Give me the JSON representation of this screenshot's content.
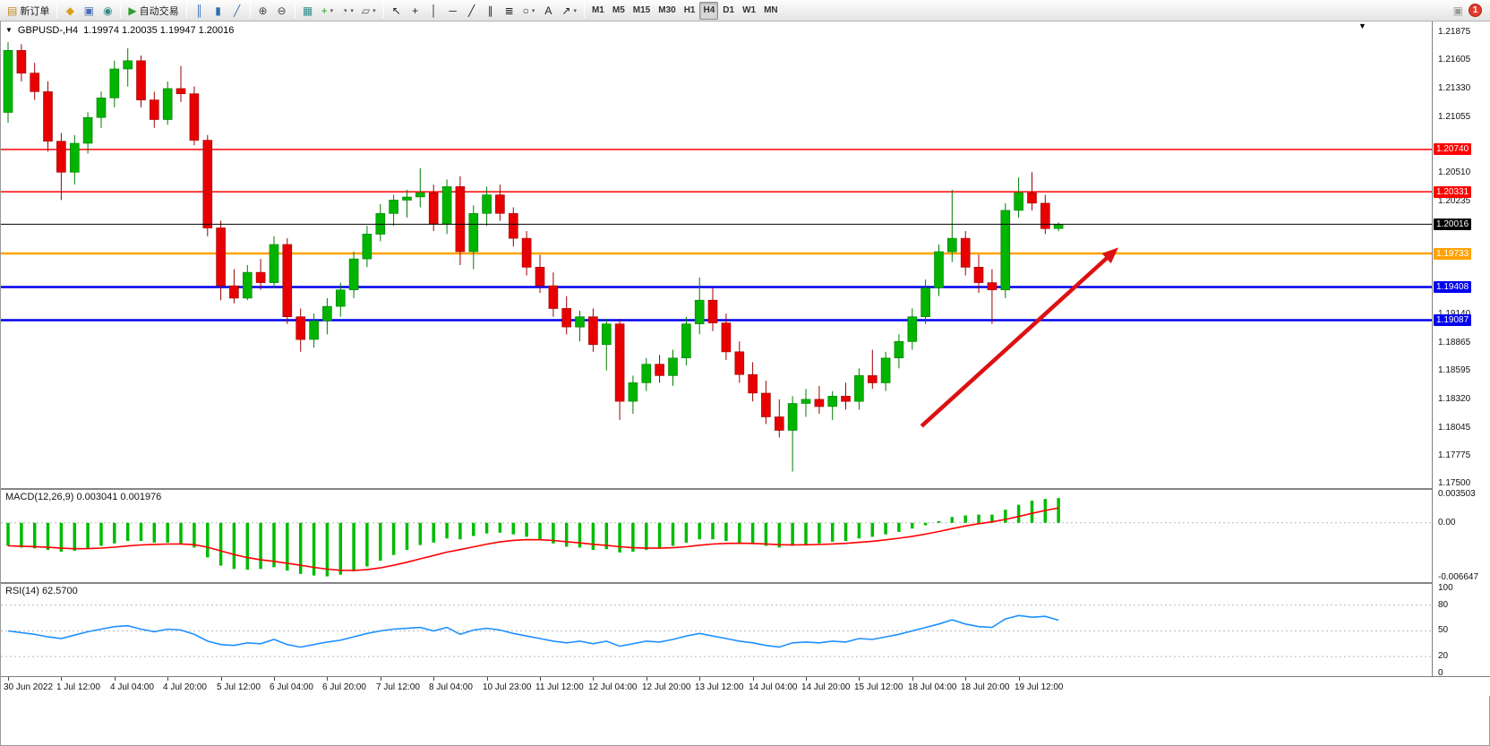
{
  "toolbar": {
    "notification_count": "1",
    "groups": [
      {
        "name": "order",
        "buttons": [
          {
            "name": "new-order-button",
            "label": "新订单",
            "icon": "new-order-icon"
          }
        ]
      },
      {
        "name": "panels",
        "buttons": [
          {
            "name": "market-watch-button",
            "icon": "market-watch-icon"
          },
          {
            "name": "navigator-button",
            "icon": "navigator-icon"
          },
          {
            "name": "terminal-button",
            "icon": "terminal-icon"
          }
        ]
      },
      {
        "name": "autotrading",
        "buttons": [
          {
            "name": "autotrading-button",
            "label": "自动交易",
            "icon": "autotrading-icon"
          }
        ]
      },
      {
        "name": "chart-type",
        "buttons": [
          {
            "name": "bar-chart-button",
            "icon": "bar-chart-icon"
          },
          {
            "name": "candlestick-chart-button",
            "icon": "candlestick-chart-icon"
          },
          {
            "name": "line-chart-button",
            "icon": "line-chart-icon"
          }
        ]
      },
      {
        "name": "zoom",
        "buttons": [
          {
            "name": "zoom-in-button",
            "icon": "zoom-in-icon"
          },
          {
            "name": "zoom-out-button",
            "icon": "zoom-out-icon"
          }
        ]
      },
      {
        "name": "windows",
        "buttons": [
          {
            "name": "tile-windows-button",
            "icon": "tile-windows-icon"
          },
          {
            "name": "indicators-button",
            "icon": "indicators-icon",
            "dropdown": true
          },
          {
            "name": "periods-button",
            "icon": "periods-icon",
            "dropdown": true
          },
          {
            "name": "templates-button",
            "icon": "templates-icon",
            "dropdown": true
          }
        ]
      },
      {
        "name": "line-studies",
        "buttons": [
          {
            "name": "cursor-button",
            "icon": "cursor-icon"
          },
          {
            "name": "crosshair-button",
            "icon": "crosshair-icon"
          },
          {
            "name": "vertical-line-button",
            "icon": "vertical-line-icon"
          },
          {
            "name": "horizontal-line-button",
            "icon": "horizontal-line-icon"
          },
          {
            "name": "trendline-button",
            "icon": "trendline-icon"
          },
          {
            "name": "channel-button",
            "icon": "channel-icon"
          },
          {
            "name": "fibonacci-button",
            "icon": "fibonacci-icon"
          },
          {
            "name": "shapes-button",
            "icon": "shapes-icon",
            "dropdown": true
          },
          {
            "name": "text-button",
            "icon": "text-icon"
          },
          {
            "name": "arrows-button",
            "icon": "arrows-icon",
            "dropdown": true
          }
        ]
      },
      {
        "name": "timeframes",
        "buttons": [
          {
            "name": "timeframe-m1",
            "label": "M1",
            "timeframe": true
          },
          {
            "name": "timeframe-m5",
            "label": "M5",
            "timeframe": true
          },
          {
            "name": "timeframe-m15",
            "label": "M15",
            "timeframe": true
          },
          {
            "name": "timeframe-m30",
            "label": "M30",
            "timeframe": true
          },
          {
            "name": "timeframe-h1",
            "label": "H1",
            "timeframe": true
          },
          {
            "name": "timeframe-h4",
            "label": "H4",
            "timeframe": true,
            "active": true
          },
          {
            "name": "timeframe-d1",
            "label": "D1",
            "timeframe": true
          },
          {
            "name": "timeframe-w1",
            "label": "W1",
            "timeframe": true
          },
          {
            "name": "timeframe-mn",
            "label": "MN",
            "timeframe": true
          }
        ]
      }
    ]
  },
  "chart_data": {
    "type": "candlestick",
    "title_symbol": "GBPUSD-,H4",
    "title_ohlc": "1.19974 1.20035 1.19947 1.20016",
    "current_candle": {
      "open": 1.19974,
      "high": 1.20035,
      "low": 1.19947,
      "close": 1.20016
    },
    "price_range": {
      "max": 1.2198,
      "min": 1.1746
    },
    "colors": {
      "up_fill": "#00B400",
      "up_stroke": "#007d00",
      "down_fill": "#E80000",
      "down_stroke": "#9c0000",
      "background": "#FFFFFF"
    },
    "price_axis_labels": [
      "1.21875",
      "1.21605",
      "1.21330",
      "1.21055",
      "1.20510",
      "1.20235",
      "1.19690",
      "1.19140",
      "1.18865",
      "1.18595",
      "1.18320",
      "1.18045",
      "1.17775",
      "1.17500"
    ],
    "hlines": [
      {
        "price": 1.2074,
        "label": "1.20740",
        "color": "#FF0000",
        "width": 1.5
      },
      {
        "price": 1.20331,
        "label": "1.20331",
        "color": "#FF0000",
        "width": 1.5
      },
      {
        "price": 1.19733,
        "label": "1.19733",
        "color": "#FFA200",
        "width": 2.4
      },
      {
        "price": 1.19408,
        "label": "1.19408",
        "color": "#0000EE",
        "width": 2.4
      },
      {
        "price": 1.19087,
        "label": "1.19087",
        "color": "#0000EE",
        "width": 2.4
      }
    ],
    "last_price": {
      "price": 1.20016,
      "label": "1.20016",
      "color": "#000000"
    },
    "arrow": {
      "from_index": 68.7,
      "from_price": 1.1806,
      "to_index": 83.5,
      "to_price": 1.1979,
      "color": "#DD1111"
    },
    "time_labels": [
      "30 Jun 2022",
      "1 Jul 12:00",
      "4 Jul 04:00",
      "4 Jul 20:00",
      "5 Jul 12:00",
      "6 Jul 04:00",
      "6 Jul 20:00",
      "7 Jul 12:00",
      "8 Jul 04:00",
      "10 Jul 23:00",
      "11 Jul 12:00",
      "12 Jul 04:00",
      "12 Jul 20:00",
      "13 Jul 12:00",
      "14 Jul 04:00",
      "14 Jul 20:00",
      "15 Jul 12:00",
      "18 Jul 04:00",
      "18 Jul 20:00",
      "19 Jul 12:00"
    ],
    "candles": [
      [
        1.211,
        1.2178,
        1.21,
        1.217
      ],
      [
        1.217,
        1.2176,
        1.214,
        1.2148
      ],
      [
        1.2148,
        1.2158,
        1.2122,
        1.213
      ],
      [
        1.213,
        1.214,
        1.2072,
        1.2082
      ],
      [
        1.2082,
        1.209,
        1.2025,
        1.2052
      ],
      [
        1.2052,
        1.2088,
        1.204,
        1.208
      ],
      [
        1.208,
        1.211,
        1.207,
        1.2105
      ],
      [
        1.2105,
        1.213,
        1.2095,
        1.2124
      ],
      [
        1.2124,
        1.216,
        1.2115,
        1.2152
      ],
      [
        1.2152,
        1.2172,
        1.2135,
        1.216
      ],
      [
        1.216,
        1.2165,
        1.2115,
        1.2122
      ],
      [
        1.2122,
        1.213,
        1.2095,
        1.2103
      ],
      [
        1.2103,
        1.214,
        1.2098,
        1.2133
      ],
      [
        1.2133,
        1.2155,
        1.212,
        1.2128
      ],
      [
        1.2128,
        1.2135,
        1.2078,
        1.2083
      ],
      [
        1.2083,
        1.2088,
        1.199,
        1.1998
      ],
      [
        1.1998,
        1.2005,
        1.1928,
        1.1942
      ],
      [
        1.1942,
        1.1958,
        1.1925,
        1.193
      ],
      [
        1.193,
        1.1962,
        1.1928,
        1.1955
      ],
      [
        1.1955,
        1.1968,
        1.1938,
        1.1945
      ],
      [
        1.1945,
        1.199,
        1.194,
        1.1982
      ],
      [
        1.1982,
        1.1988,
        1.1905,
        1.1912
      ],
      [
        1.1912,
        1.192,
        1.1878,
        1.189
      ],
      [
        1.189,
        1.1915,
        1.1882,
        1.1908
      ],
      [
        1.1908,
        1.193,
        1.1895,
        1.1922
      ],
      [
        1.1922,
        1.1945,
        1.1912,
        1.1938
      ],
      [
        1.1938,
        1.1975,
        1.193,
        1.1968
      ],
      [
        1.1968,
        1.2,
        1.196,
        1.1992
      ],
      [
        1.1992,
        1.2021,
        1.1985,
        1.2012
      ],
      [
        1.2012,
        1.203,
        1.2,
        1.2025
      ],
      [
        1.2025,
        1.2035,
        1.2008,
        1.2028
      ],
      [
        1.2028,
        1.2056,
        1.2018,
        1.2032
      ],
      [
        1.2032,
        1.204,
        1.1995,
        1.2002
      ],
      [
        1.2002,
        1.2045,
        1.1992,
        1.2038
      ],
      [
        1.2038,
        1.2048,
        1.1962,
        1.1975
      ],
      [
        1.1975,
        1.202,
        1.1958,
        1.2012
      ],
      [
        1.2012,
        1.2038,
        1.2,
        1.203
      ],
      [
        1.203,
        1.204,
        1.2005,
        1.2012
      ],
      [
        1.2012,
        1.2018,
        1.198,
        1.1988
      ],
      [
        1.1988,
        1.1995,
        1.1952,
        1.196
      ],
      [
        1.196,
        1.1972,
        1.1935,
        1.1942
      ],
      [
        1.1942,
        1.1955,
        1.1912,
        1.192
      ],
      [
        1.192,
        1.1932,
        1.1895,
        1.1902
      ],
      [
        1.1902,
        1.1918,
        1.1888,
        1.1912
      ],
      [
        1.1912,
        1.192,
        1.1878,
        1.1885
      ],
      [
        1.1885,
        1.191,
        1.186,
        1.1905
      ],
      [
        1.1905,
        1.191,
        1.1812,
        1.183
      ],
      [
        1.183,
        1.1855,
        1.1818,
        1.1848
      ],
      [
        1.1848,
        1.1872,
        1.184,
        1.1866
      ],
      [
        1.1866,
        1.1875,
        1.1848,
        1.1855
      ],
      [
        1.1855,
        1.188,
        1.1845,
        1.1872
      ],
      [
        1.1872,
        1.1912,
        1.1865,
        1.1905
      ],
      [
        1.1905,
        1.195,
        1.1895,
        1.1928
      ],
      [
        1.1928,
        1.194,
        1.1898,
        1.1906
      ],
      [
        1.1906,
        1.1915,
        1.187,
        1.1878
      ],
      [
        1.1878,
        1.1888,
        1.1848,
        1.1856
      ],
      [
        1.1856,
        1.1868,
        1.183,
        1.1838
      ],
      [
        1.1838,
        1.185,
        1.1808,
        1.1815
      ],
      [
        1.1815,
        1.1832,
        1.1795,
        1.1802
      ],
      [
        1.1802,
        1.1835,
        1.1762,
        1.1828
      ],
      [
        1.1828,
        1.1842,
        1.1815,
        1.1832
      ],
      [
        1.1832,
        1.1845,
        1.1818,
        1.1825
      ],
      [
        1.1825,
        1.184,
        1.1812,
        1.1835
      ],
      [
        1.1835,
        1.1848,
        1.1822,
        1.183
      ],
      [
        1.183,
        1.1862,
        1.1822,
        1.1855
      ],
      [
        1.1855,
        1.188,
        1.1842,
        1.1848
      ],
      [
        1.1848,
        1.1878,
        1.184,
        1.1872
      ],
      [
        1.1872,
        1.1895,
        1.1862,
        1.1888
      ],
      [
        1.1888,
        1.192,
        1.188,
        1.1912
      ],
      [
        1.1912,
        1.1948,
        1.1905,
        1.194
      ],
      [
        1.194,
        1.1982,
        1.1932,
        1.1975
      ],
      [
        1.1975,
        1.2035,
        1.1965,
        1.1988
      ],
      [
        1.1988,
        1.1995,
        1.1952,
        1.196
      ],
      [
        1.196,
        1.1972,
        1.1935,
        1.1945
      ],
      [
        1.1945,
        1.1958,
        1.1905,
        1.1938
      ],
      [
        1.1938,
        1.2022,
        1.193,
        1.2015
      ],
      [
        1.2015,
        1.2047,
        1.2008,
        1.2032
      ],
      [
        1.2032,
        1.2052,
        1.2015,
        1.2022
      ],
      [
        1.2022,
        1.203,
        1.1992,
        1.19974
      ],
      [
        1.19974,
        1.20035,
        1.19947,
        1.20016
      ]
    ],
    "macd": {
      "title": "MACD(12,26,9)",
      "values_text": "0.003041 0.001976",
      "value": 0.003041,
      "signal_value": 0.001976,
      "signal_period": 9,
      "axis_labels": [
        "0.003503",
        "0.00",
        "-0.006647"
      ],
      "range": {
        "max": 0.004,
        "min": -0.0072
      },
      "histogram_color": "#00BB00",
      "signal_color": "#FF0000",
      "histogram": [
        -0.0028,
        -0.003,
        -0.0031,
        -0.0033,
        -0.0035,
        -0.0034,
        -0.0031,
        -0.0028,
        -0.0025,
        -0.0022,
        -0.0022,
        -0.0024,
        -0.0024,
        -0.0025,
        -0.003,
        -0.0042,
        -0.0052,
        -0.0056,
        -0.0057,
        -0.0056,
        -0.0054,
        -0.0058,
        -0.0062,
        -0.0064,
        -0.0065,
        -0.0063,
        -0.0059,
        -0.0053,
        -0.0046,
        -0.0039,
        -0.0033,
        -0.0027,
        -0.0024,
        -0.0019,
        -0.002,
        -0.0016,
        -0.0013,
        -0.0012,
        -0.0014,
        -0.0017,
        -0.0021,
        -0.0025,
        -0.0029,
        -0.003,
        -0.0033,
        -0.0032,
        -0.0036,
        -0.0035,
        -0.0033,
        -0.0031,
        -0.0028,
        -0.0024,
        -0.002,
        -0.002,
        -0.0022,
        -0.0024,
        -0.0026,
        -0.0028,
        -0.003,
        -0.0028,
        -0.0026,
        -0.0025,
        -0.0023,
        -0.0022,
        -0.0019,
        -0.0017,
        -0.0014,
        -0.0011,
        -0.0007,
        -0.0003,
        0.0002,
        0.0007,
        0.0009,
        0.001,
        0.001,
        0.0016,
        0.0022,
        0.0027,
        0.0029,
        0.003
      ]
    },
    "rsi": {
      "title": "RSI(14)",
      "value_text": "62.5700",
      "value": 62.57,
      "levels": [
        80,
        50,
        20
      ],
      "axis_labels": [
        "100",
        "80",
        "50",
        "20",
        "0"
      ],
      "range": {
        "max": 100,
        "min": 0
      },
      "line_color": "#1E90FF",
      "values": [
        50,
        48,
        46,
        43,
        41,
        45,
        49,
        52,
        55,
        56,
        52,
        49,
        52,
        51,
        46,
        38,
        34,
        33,
        36,
        35,
        40,
        34,
        31,
        34,
        37,
        39,
        43,
        47,
        50,
        52,
        53,
        54,
        50,
        54,
        46,
        51,
        53,
        51,
        47,
        44,
        41,
        38,
        36,
        38,
        35,
        38,
        32,
        35,
        38,
        37,
        40,
        44,
        47,
        44,
        41,
        38,
        36,
        33,
        31,
        36,
        37,
        36,
        38,
        37,
        41,
        40,
        43,
        46,
        50,
        54,
        58,
        63,
        58,
        55,
        54,
        64,
        68,
        66,
        67,
        62.57
      ]
    }
  }
}
